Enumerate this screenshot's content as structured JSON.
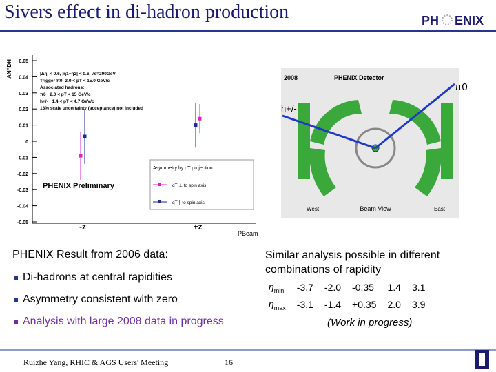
{
  "header": {
    "title": "Sivers effect in di-hadron production",
    "logo_left": "PH",
    "logo_right": "ENIX"
  },
  "chart_data": {
    "type": "errorbar",
    "y_label": "AN^DH",
    "x_label": "PBeam",
    "categories": [
      "-z",
      "+z"
    ],
    "ylim": [
      -0.05,
      0.05
    ],
    "yticks": [
      0.05,
      0.04,
      0.03,
      0.02,
      0.01,
      0,
      -0.01,
      -0.02,
      -0.03,
      -0.04,
      -0.05
    ],
    "annotations": [
      "|Δη| < 0.6, |η1+η2| < 0.6, √s=200GeV",
      "Trigger π0: 3.0 < pT < 15.0 GeV/c",
      "Associated hadrons:",
      "π0 : 2.0 < pT < 15 GeV/c",
      "h+/- : 1.4 < pT < 4.7 GeV/c",
      "13% scale uncertainty (acceptance) not included"
    ],
    "watermark": "PHENIX Preliminary",
    "legend_title": "Asymmetry by qT projection:",
    "series": [
      {
        "name": "qT ⊥ to spin axis",
        "color": "#e020c0",
        "values": [
          -0.009,
          0.014
        ],
        "errors": [
          0.015,
          0.009
        ]
      },
      {
        "name": "qT ∥ to spin axis",
        "color": "#1a2a9a",
        "values": [
          0.003,
          0.01
        ],
        "errors": [
          0.017,
          0.014
        ]
      }
    ]
  },
  "detector": {
    "year": "2008",
    "title": "PHENIX Detector",
    "view": "Beam View",
    "west": "West",
    "east": "East",
    "hadron": "h+/-",
    "pion": "π0"
  },
  "left_text": {
    "heading": "PHENIX Result from 2006 data:",
    "bullets": [
      "Di-hadrons at central rapidities",
      "Asymmetry consistent with zero",
      "Analysis with large 2008 data in progress"
    ]
  },
  "right_text": {
    "heading": "Similar analysis possible in different combinations of rapidity",
    "table": {
      "rows": [
        {
          "label": "η",
          "sub": "min",
          "cells": [
            "-3.7",
            "-2.0",
            "-0.35",
            "1.4",
            "3.1"
          ]
        },
        {
          "label": "η",
          "sub": "max",
          "cells": [
            "-3.1",
            "-1.4",
            "+0.35",
            "2.0",
            "3.9"
          ]
        }
      ]
    },
    "note": "(Work in progress)"
  },
  "footer": {
    "author": "Ruizhe Yang, RHIC & AGS Users' Meeting",
    "page": "16"
  }
}
